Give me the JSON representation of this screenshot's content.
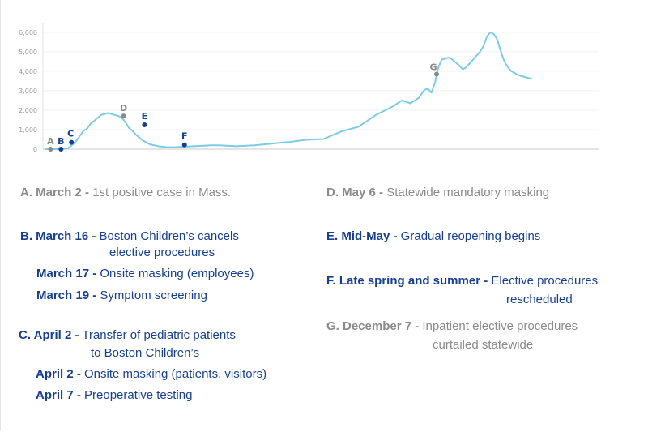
{
  "chart_data": {
    "type": "line",
    "y_ticks": [
      "6,000",
      "5,000",
      "4,000",
      "3,000",
      "2,000",
      "1,000",
      "0"
    ],
    "y_tick_values": [
      6000,
      5000,
      4000,
      3000,
      2000,
      1000,
      0
    ],
    "ylim": [
      0,
      6200
    ],
    "xlim": [
      0,
      300
    ],
    "series_color": "#7ecbe6",
    "series": [
      {
        "x": [
          0,
          5,
          10,
          13,
          16,
          18,
          20,
          22,
          24,
          26,
          28,
          30,
          32,
          34,
          36,
          38,
          40,
          42,
          44,
          46,
          48,
          50,
          52,
          54,
          56,
          58,
          60,
          65,
          70,
          75,
          80,
          85,
          90,
          95,
          100,
          110,
          120,
          130,
          135,
          137,
          140,
          145,
          150,
          160,
          170,
          180,
          190,
          200,
          205,
          210,
          215,
          218,
          220,
          222,
          224,
          226,
          228,
          230,
          232,
          234,
          236,
          238,
          240,
          242,
          244,
          246,
          248,
          250,
          252,
          254,
          256,
          258,
          260,
          262,
          264,
          266,
          268,
          270,
          272,
          274,
          276,
          278,
          280
        ],
        "y": [
          0,
          0,
          0,
          50,
          250,
          450,
          700,
          950,
          1050,
          1300,
          1450,
          1600,
          1750,
          1800,
          1850,
          1800,
          1750,
          1700,
          1600,
          1400,
          1100,
          950,
          750,
          600,
          450,
          350,
          250,
          150,
          100,
          100,
          130,
          150,
          170,
          200,
          200,
          150,
          200,
          280,
          330,
          350,
          360,
          420,
          480,
          520,
          900,
          1150,
          1750,
          2200,
          2500,
          2350,
          2650,
          3050,
          3100,
          2900,
          3400,
          4200,
          4600,
          4650,
          4700,
          4600,
          4450,
          4300,
          4100,
          4200,
          4400,
          4600,
          4800,
          5000,
          5300,
          5800,
          6000,
          5900,
          5600,
          5000,
          4500,
          4200,
          4000,
          3900,
          3800,
          3750,
          3700,
          3650,
          3600
        ]
      }
    ],
    "markers": [
      {
        "label": "A",
        "x": 3,
        "y": 0,
        "color": "#8a8a8a",
        "dx": 0,
        "dy": -6
      },
      {
        "label": "B",
        "x": 9,
        "y": 0,
        "color": "#173f8e",
        "dx": 0,
        "dy": -6
      },
      {
        "label": "C",
        "x": 15,
        "y": 350,
        "color": "#173f8e",
        "dx": -1,
        "dy": -7
      },
      {
        "label": "D",
        "x": 45,
        "y": 1700,
        "color": "#8a8a8a",
        "dx": 0,
        "dy": -6
      },
      {
        "label": "E",
        "x": 57,
        "y": 1250,
        "color": "#173f8e",
        "dx": 0,
        "dy": -7
      },
      {
        "label": "F",
        "x": 80,
        "y": 220,
        "color": "#173f8e",
        "dx": 0,
        "dy": -7
      },
      {
        "label": "G",
        "x": 225,
        "y": 3850,
        "color": "#8a8a8a",
        "dx": -4,
        "dy": -5
      }
    ]
  },
  "legend": {
    "a": {
      "key": "A. March 2 -",
      "text": " 1st positive case in Mass."
    },
    "b": {
      "key": "B. March 16 -",
      "text": " Boston Children’s cancels",
      "cont": "elective procedures"
    },
    "b2": {
      "key": "March 17 -",
      "text": " Onsite masking (employees)"
    },
    "b3": {
      "key": "March 19 -",
      "text": " Symptom screening"
    },
    "c": {
      "key": "C. April 2 -",
      "text": " Transfer of pediatric patients",
      "cont": "to Boston Children’s"
    },
    "c2": {
      "key": "April 2 -",
      "text": " Onsite masking (patients, visitors)"
    },
    "c3": {
      "key": "April 7 -",
      "text": " Preoperative testing"
    },
    "d": {
      "key": "D. May 6 -",
      "text": " Statewide mandatory masking"
    },
    "e": {
      "key": "E.  Mid-May -",
      "text": " Gradual reopening begins"
    },
    "f": {
      "key": "F. Late spring and summer -",
      "text": " Elective procedures",
      "cont": "rescheduled"
    },
    "g": {
      "key": "G. December 7 -",
      "text": " Inpatient elective procedures",
      "cont": "curtailed statewide"
    }
  },
  "colors": {
    "gray": "#8a8a8a",
    "blue": "#173f8e",
    "line": "#7ecbe6",
    "axis": "#c8c8c8",
    "grid": "#f0f0f0"
  }
}
